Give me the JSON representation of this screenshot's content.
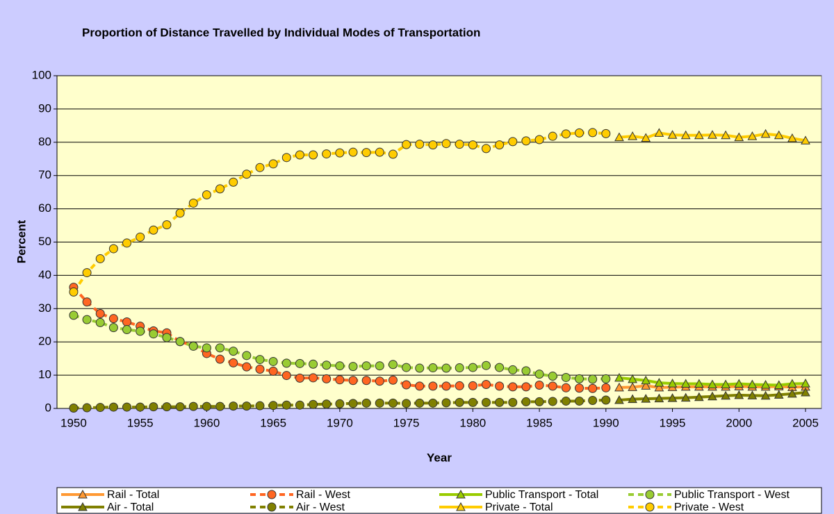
{
  "chart_data": {
    "type": "line",
    "title": "Proportion of Distance Travelled by Individual Modes of Transportation",
    "x_label": "Year",
    "y_label": "Percent",
    "x": [
      1950,
      1951,
      1952,
      1953,
      1954,
      1955,
      1956,
      1957,
      1958,
      1959,
      1960,
      1961,
      1962,
      1963,
      1964,
      1965,
      1966,
      1967,
      1968,
      1969,
      1970,
      1971,
      1972,
      1973,
      1974,
      1975,
      1976,
      1977,
      1978,
      1979,
      1980,
      1981,
      1982,
      1983,
      1984,
      1985,
      1986,
      1987,
      1988,
      1989,
      1990,
      1991,
      1992,
      1993,
      1994,
      1995,
      1996,
      1997,
      1998,
      1999,
      2000,
      2001,
      2002,
      2003,
      2004,
      2005
    ],
    "xlim": [
      1948.75,
      2006.2
    ],
    "xticks": [
      1950,
      1955,
      1960,
      1965,
      1970,
      1975,
      1980,
      1985,
      1990,
      1995,
      2000,
      2005
    ],
    "ylim": [
      0,
      100
    ],
    "yticks": [
      0,
      10,
      20,
      30,
      40,
      50,
      60,
      70,
      80,
      90,
      100
    ],
    "grid": true,
    "series": [
      {
        "name": "Rail - Total",
        "color": "#ff9933",
        "marker": "triangle",
        "dashed": false,
        "values": [
          null,
          null,
          null,
          null,
          null,
          null,
          null,
          null,
          null,
          null,
          null,
          null,
          null,
          null,
          null,
          null,
          null,
          null,
          null,
          null,
          null,
          null,
          null,
          null,
          null,
          null,
          null,
          null,
          null,
          null,
          null,
          null,
          null,
          null,
          null,
          null,
          null,
          null,
          null,
          null,
          null,
          6.3,
          6.4,
          6.8,
          6.3,
          6.4,
          6.5,
          6.5,
          6.5,
          6.5,
          6.6,
          6.5,
          6.5,
          6.6,
          6.4,
          6.5
        ]
      },
      {
        "name": "Rail - West",
        "color": "#ff6622",
        "marker": "circle",
        "dashed": true,
        "values": [
          36.4,
          32,
          28.5,
          27,
          26,
          24.7,
          23.3,
          22.7,
          20.1,
          18.8,
          16.5,
          14.8,
          13.7,
          12.5,
          11.8,
          11.2,
          9.9,
          9.1,
          9.2,
          8.9,
          8.6,
          8.4,
          8.4,
          8.2,
          8.5,
          7.1,
          6.7,
          6.7,
          6.7,
          6.8,
          6.8,
          7.2,
          6.7,
          6.5,
          6.5,
          7,
          6.7,
          6.2,
          6.1,
          6,
          6.2,
          null,
          null,
          null,
          null,
          null,
          null,
          null,
          null,
          null,
          null,
          null,
          null,
          null,
          null,
          null
        ]
      },
      {
        "name": "Public Transport - Total",
        "color": "#99cc00",
        "marker": "triangle",
        "dashed": false,
        "values": [
          null,
          null,
          null,
          null,
          null,
          null,
          null,
          null,
          null,
          null,
          null,
          null,
          null,
          null,
          null,
          null,
          null,
          null,
          null,
          null,
          null,
          null,
          null,
          null,
          null,
          null,
          null,
          null,
          null,
          null,
          null,
          null,
          null,
          null,
          null,
          null,
          null,
          null,
          null,
          null,
          null,
          9.2,
          8.8,
          8.4,
          7.7,
          7.5,
          7.4,
          7.4,
          7.2,
          7.2,
          7.4,
          7.2,
          7.1,
          7,
          7.4,
          7.5
        ]
      },
      {
        "name": "Public Transport - West",
        "color": "#99cc33",
        "marker": "circle",
        "dashed": true,
        "values": [
          28,
          26.7,
          25.8,
          24.3,
          23.7,
          23.2,
          22.4,
          21.3,
          20.1,
          18.7,
          18.2,
          18.2,
          17.2,
          15.9,
          14.7,
          14.1,
          13.6,
          13.5,
          13.3,
          13,
          12.8,
          12.6,
          12.8,
          12.8,
          13.2,
          12.3,
          12.1,
          12.2,
          12.1,
          12.2,
          12.3,
          12.9,
          12.3,
          11.6,
          11.3,
          10.3,
          9.7,
          9.3,
          8.9,
          8.8,
          8.9,
          null,
          null,
          null,
          null,
          null,
          null,
          null,
          null,
          null,
          null,
          null,
          null,
          null,
          null,
          null
        ]
      },
      {
        "name": "Air - Total",
        "color": "#808000",
        "marker": "triangle",
        "dashed": false,
        "values": [
          null,
          null,
          null,
          null,
          null,
          null,
          null,
          null,
          null,
          null,
          null,
          null,
          null,
          null,
          null,
          null,
          null,
          null,
          null,
          null,
          null,
          null,
          null,
          null,
          null,
          null,
          null,
          null,
          null,
          null,
          null,
          null,
          null,
          null,
          null,
          null,
          null,
          null,
          null,
          null,
          null,
          2.5,
          2.8,
          2.9,
          3,
          3.1,
          3.2,
          3.4,
          3.6,
          3.8,
          4,
          3.9,
          3.8,
          4.1,
          4.4,
          4.8
        ]
      },
      {
        "name": "Air - West",
        "color": "#808000",
        "marker": "circle",
        "dashed": true,
        "values": [
          0.1,
          0.2,
          0.3,
          0.4,
          0.4,
          0.4,
          0.5,
          0.5,
          0.5,
          0.6,
          0.6,
          0.6,
          0.7,
          0.7,
          0.8,
          0.9,
          1,
          1,
          1.2,
          1.3,
          1.4,
          1.5,
          1.6,
          1.6,
          1.6,
          1.5,
          1.6,
          1.6,
          1.7,
          1.8,
          1.8,
          1.8,
          1.8,
          1.8,
          2,
          2,
          2.1,
          2.2,
          2.2,
          2.4,
          2.5,
          null,
          null,
          null,
          null,
          null,
          null,
          null,
          null,
          null,
          null,
          null,
          null,
          null,
          null,
          null
        ]
      },
      {
        "name": "Private - Total",
        "color": "#ffcc00",
        "marker": "triangle",
        "dashed": false,
        "values": [
          null,
          null,
          null,
          null,
          null,
          null,
          null,
          null,
          null,
          null,
          null,
          null,
          null,
          null,
          null,
          null,
          null,
          null,
          null,
          null,
          null,
          null,
          null,
          null,
          null,
          null,
          null,
          null,
          null,
          null,
          null,
          null,
          null,
          null,
          null,
          null,
          null,
          null,
          null,
          null,
          null,
          81.5,
          81.8,
          81.3,
          82.8,
          82.2,
          82.1,
          82.1,
          82.2,
          82.1,
          81.5,
          81.8,
          82.5,
          82.1,
          81.2,
          80.5
        ]
      },
      {
        "name": "Private - West",
        "color": "#ffcc00",
        "marker": "circle",
        "dashed": true,
        "values": [
          35,
          40.8,
          45,
          48,
          49.7,
          51.5,
          53.6,
          55.2,
          58.7,
          61.7,
          64.2,
          66,
          68,
          70.4,
          72.4,
          73.5,
          75.4,
          76.2,
          76.2,
          76.5,
          76.8,
          77,
          76.9,
          77,
          76.4,
          79.3,
          79.4,
          79.2,
          79.6,
          79.4,
          79.2,
          78.1,
          79.2,
          80.2,
          80.4,
          80.8,
          81.8,
          82.5,
          82.8,
          82.9,
          82.6,
          null,
          null,
          null,
          null,
          null,
          null,
          null,
          null,
          null,
          null,
          null,
          null,
          null,
          null,
          null
        ]
      }
    ]
  }
}
